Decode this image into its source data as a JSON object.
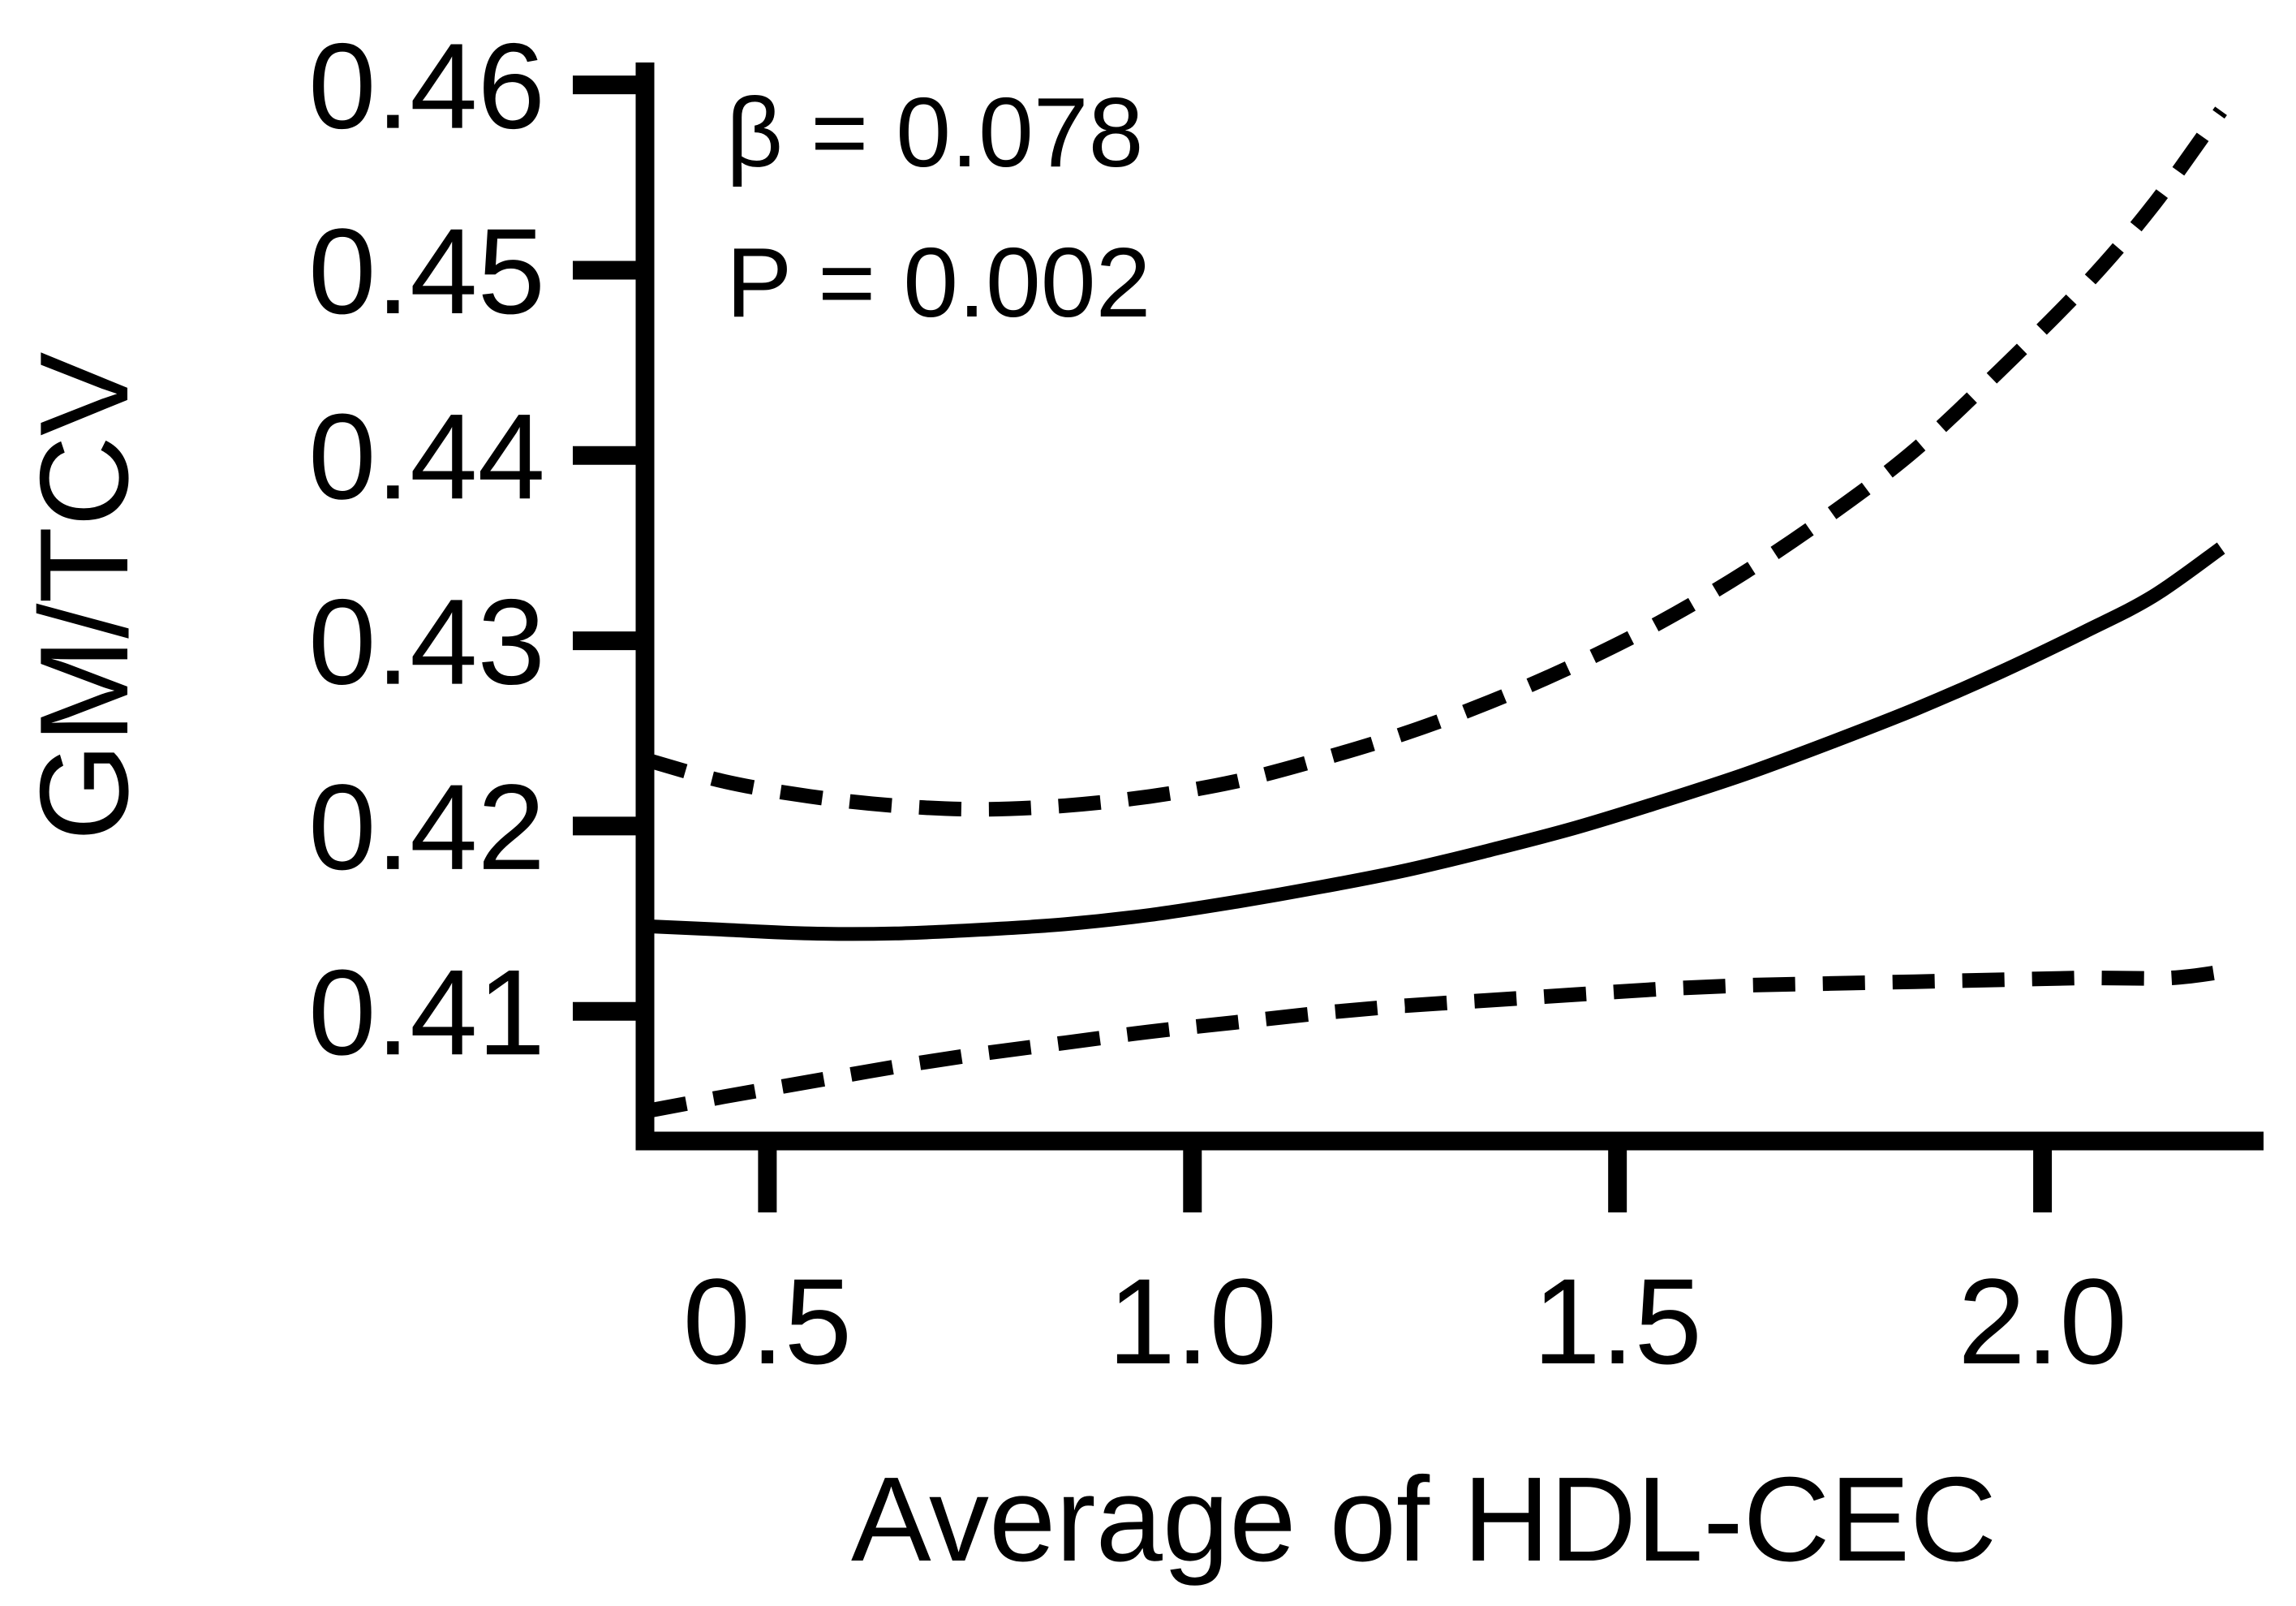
{
  "figure": {
    "background_color": "#ffffff",
    "ink_color": "#000000"
  },
  "chart_data": {
    "type": "line",
    "title": "",
    "xlabel": "Average of HDL-CEC",
    "ylabel": "GM/TCV",
    "annotations": [
      {
        "text": "β = 0.078"
      },
      {
        "text": "P = 0.002"
      }
    ],
    "xlim": [
      0.356,
      2.26
    ],
    "ylim": [
      0.403,
      0.4613
    ],
    "grid": false,
    "legend": "none",
    "x_ticks": [
      {
        "value": 0.5,
        "label": "0.5"
      },
      {
        "value": 1.0,
        "label": "1.0"
      },
      {
        "value": 1.5,
        "label": "1.5"
      },
      {
        "value": 2.0,
        "label": "2.0"
      }
    ],
    "y_ticks": [
      {
        "value": 0.46,
        "label": "0.46"
      },
      {
        "value": 0.45,
        "label": "0.45"
      },
      {
        "value": 0.44,
        "label": "0.44"
      },
      {
        "value": 0.43,
        "label": "0.43"
      },
      {
        "value": 0.42,
        "label": "0.42"
      },
      {
        "value": 0.41,
        "label": "0.41"
      }
    ],
    "series": [
      {
        "name": "fitted-regression-line",
        "style": "solid",
        "values": [
          [
            0.356,
            0.4146
          ],
          [
            0.45,
            0.4144
          ],
          [
            0.55,
            0.4142
          ],
          [
            0.65,
            0.4142
          ],
          [
            0.75,
            0.4144
          ],
          [
            0.85,
            0.4147
          ],
          [
            0.95,
            0.4152
          ],
          [
            1.05,
            0.4159
          ],
          [
            1.15,
            0.4167
          ],
          [
            1.25,
            0.4176
          ],
          [
            1.35,
            0.4187
          ],
          [
            1.45,
            0.4199
          ],
          [
            1.55,
            0.4213
          ],
          [
            1.65,
            0.4228
          ],
          [
            1.75,
            0.4245
          ],
          [
            1.85,
            0.4263
          ],
          [
            1.95,
            0.4283
          ],
          [
            2.05,
            0.4305
          ],
          [
            2.13,
            0.4324
          ],
          [
            2.21,
            0.435
          ]
        ]
      },
      {
        "name": "confidence-band-upper",
        "style": "dashed",
        "values": [
          [
            0.356,
            0.4236
          ],
          [
            0.45,
            0.4224
          ],
          [
            0.55,
            0.4216
          ],
          [
            0.65,
            0.4211
          ],
          [
            0.75,
            0.4209
          ],
          [
            0.85,
            0.4211
          ],
          [
            0.95,
            0.4216
          ],
          [
            1.05,
            0.4224
          ],
          [
            1.15,
            0.4236
          ],
          [
            1.25,
            0.425
          ],
          [
            1.35,
            0.4267
          ],
          [
            1.45,
            0.4287
          ],
          [
            1.55,
            0.431
          ],
          [
            1.65,
            0.4337
          ],
          [
            1.75,
            0.4368
          ],
          [
            1.85,
            0.4403
          ],
          [
            1.95,
            0.4446
          ],
          [
            2.05,
            0.4492
          ],
          [
            2.13,
            0.4535
          ],
          [
            2.21,
            0.4586
          ]
        ]
      },
      {
        "name": "confidence-band-lower",
        "style": "dashed",
        "values": [
          [
            0.356,
            0.4046
          ],
          [
            0.45,
            0.4054
          ],
          [
            0.55,
            0.4062
          ],
          [
            0.65,
            0.407
          ],
          [
            0.75,
            0.4077
          ],
          [
            0.85,
            0.4083
          ],
          [
            0.95,
            0.4089
          ],
          [
            1.05,
            0.4094
          ],
          [
            1.15,
            0.4099
          ],
          [
            1.25,
            0.4103
          ],
          [
            1.35,
            0.4106
          ],
          [
            1.45,
            0.4109
          ],
          [
            1.55,
            0.4112
          ],
          [
            1.65,
            0.4114
          ],
          [
            1.75,
            0.4115
          ],
          [
            1.85,
            0.4116
          ],
          [
            1.95,
            0.4117
          ],
          [
            2.05,
            0.4118
          ],
          [
            2.15,
            0.4118
          ],
          [
            2.22,
            0.4122
          ]
        ]
      }
    ]
  }
}
